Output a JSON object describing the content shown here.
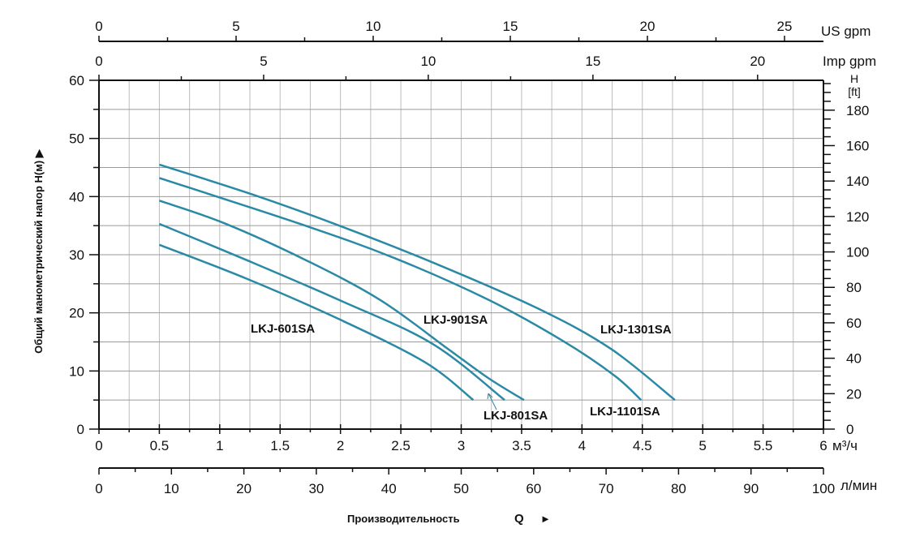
{
  "chart_data": {
    "type": "line",
    "title": "",
    "xlabel": "Производительность",
    "xlabel_symbol": "Q",
    "xlabel_arrow": "►",
    "ylabel": "Общий манометрический напор H(м) ▶",
    "xlim": [
      0,
      6
    ],
    "ylim": [
      0,
      60
    ],
    "x_unit": "м³/ч",
    "grid": true,
    "x_ticks": [
      0,
      0.5,
      1,
      1.5,
      2,
      2.5,
      3,
      3.5,
      4,
      4.5,
      5,
      5.5,
      6
    ],
    "y_ticks": [
      0,
      10,
      20,
      30,
      40,
      50,
      60
    ],
    "secondary_axes": {
      "us_gpm": {
        "unit": "US gpm",
        "range": [
          0,
          26.42
        ],
        "ticks": [
          0,
          5,
          10,
          15,
          20,
          25
        ]
      },
      "imp_gpm": {
        "unit": "Imp gpm",
        "range": [
          0,
          22
        ],
        "ticks": [
          0,
          5,
          10,
          15,
          20
        ]
      },
      "l_min": {
        "unit": "л/мин",
        "range": [
          0,
          100
        ],
        "ticks": [
          0,
          10,
          20,
          30,
          40,
          50,
          60,
          70,
          80,
          90,
          100
        ]
      },
      "ft": {
        "unit_top": "H",
        "unit_bottom": "[ft]",
        "range": [
          0,
          196.85
        ],
        "ticks": [
          0,
          20,
          40,
          60,
          80,
          100,
          120,
          140,
          160,
          180
        ]
      }
    },
    "series": [
      {
        "name": "LKJ-1301SA",
        "x": [
          0.5,
          1.28,
          1.99,
          2.76,
          3.63,
          4.24,
          4.77
        ],
        "y": [
          45.5,
          40.3,
          35.0,
          28.7,
          20.8,
          13.8,
          5.0
        ]
      },
      {
        "name": "LKJ-1101SA",
        "x": [
          0.5,
          1.68,
          2.45,
          3.23,
          3.84,
          4.27,
          4.49
        ],
        "y": [
          43.2,
          35.2,
          29.4,
          22.2,
          15.2,
          9.2,
          5.0
        ]
      },
      {
        "name": "LKJ-901SA",
        "x": [
          0.5,
          1.04,
          1.71,
          2.33,
          2.89,
          3.23,
          3.52
        ],
        "y": [
          39.3,
          35.4,
          29.1,
          22.2,
          13.8,
          8.7,
          5.0
        ]
      },
      {
        "name": "LKJ-801SA",
        "x": [
          0.5,
          1.22,
          1.99,
          2.76,
          3.36
        ],
        "y": [
          35.3,
          29.1,
          22.2,
          14.7,
          5.0
        ]
      },
      {
        "name": "LKJ-601SA",
        "x": [
          0.5,
          1.22,
          1.99,
          2.7,
          3.1
        ],
        "y": [
          31.7,
          25.9,
          18.9,
          11.5,
          5.0
        ]
      }
    ],
    "line_color": "#2a8aa6"
  }
}
